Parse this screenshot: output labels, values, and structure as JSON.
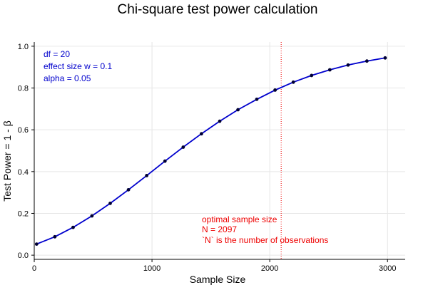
{
  "chart_data": {
    "type": "line",
    "title": "Chi-square test power calculation",
    "xlabel": "Sample Size",
    "ylabel": "Test Power = 1 -  β",
    "xlim": [
      0,
      3150
    ],
    "ylim": [
      -0.02,
      1.02
    ],
    "xticks": [
      0,
      1000,
      2000,
      3000
    ],
    "yticks": [
      0.0,
      0.2,
      0.4,
      0.6,
      0.8,
      1.0
    ],
    "xtick_labels": [
      "0",
      "1000",
      "2000",
      "3000"
    ],
    "ytick_labels": [
      "0.0",
      "0.2",
      "0.4",
      "0.6",
      "0.8",
      "1.0"
    ],
    "grid": true,
    "series": [
      {
        "x": [
          20,
          175,
          330,
          490,
          645,
          800,
          955,
          1110,
          1265,
          1420,
          1575,
          1730,
          1890,
          2045,
          2200,
          2355,
          2510,
          2665,
          2825,
          2980
        ],
        "y": [
          0.053,
          0.088,
          0.133,
          0.188,
          0.248,
          0.313,
          0.381,
          0.45,
          0.517,
          0.581,
          0.641,
          0.696,
          0.746,
          0.79,
          0.828,
          0.86,
          0.887,
          0.91,
          0.929,
          0.944
        ]
      }
    ],
    "params": {
      "lines": [
        "df = 20",
        "effect size w = 0.1",
        "alpha = 0.05"
      ]
    },
    "optimal": {
      "x": 2097,
      "lines": [
        "optimal sample size",
        "N = 2097",
        "`N` is the number of observations"
      ]
    },
    "colors": {
      "line": "#0000cd",
      "points": "#000033",
      "params_text": "#0000cd",
      "optimal": "#ee0000",
      "grid": "#e6e6e6",
      "axis": "#000000"
    }
  }
}
